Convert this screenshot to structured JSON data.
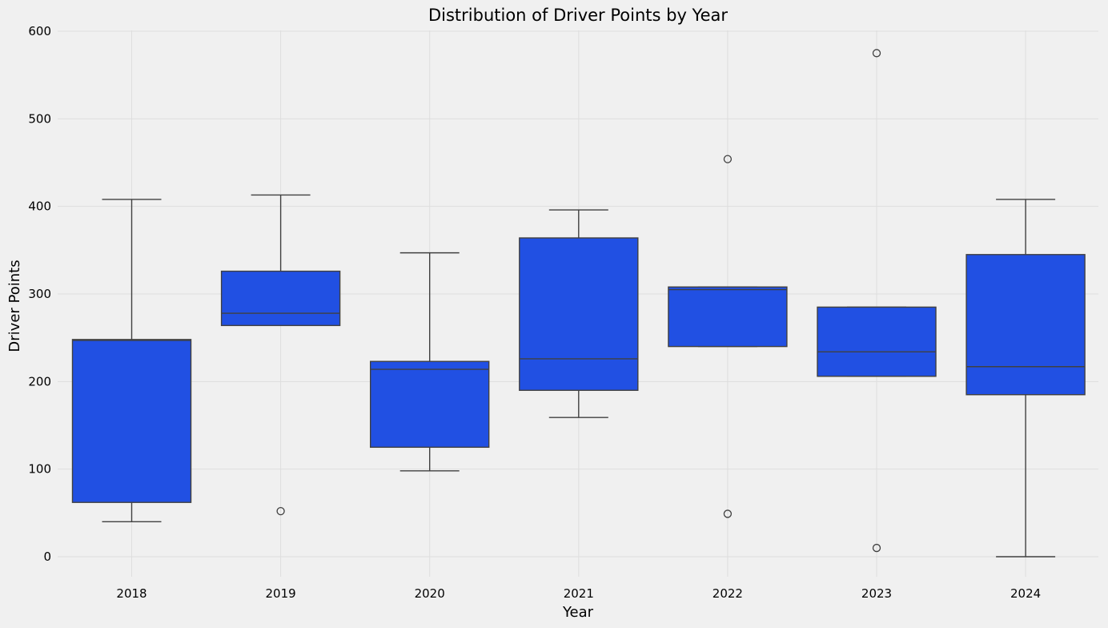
{
  "chart_data": {
    "type": "box",
    "title": "Distribution of Driver Points by Year",
    "xlabel": "Year",
    "ylabel": "Driver Points",
    "ylim": [
      -25,
      600
    ],
    "yticks": [
      0,
      100,
      200,
      300,
      400,
      500,
      600
    ],
    "grid": true,
    "box_color": "#2150e3",
    "line_color": "#404040",
    "categories": [
      "2018",
      "2019",
      "2020",
      "2021",
      "2022",
      "2023",
      "2024"
    ],
    "boxes": [
      {
        "category": "2018",
        "whisker_low": 40,
        "q1": 62,
        "median": 247,
        "q3": 248,
        "whisker_high": 408,
        "outliers": []
      },
      {
        "category": "2019",
        "whisker_low": 264,
        "q1": 264,
        "median": 278,
        "q3": 326,
        "whisker_high": 413,
        "outliers": [
          52
        ]
      },
      {
        "category": "2020",
        "whisker_low": 98,
        "q1": 125,
        "median": 214,
        "q3": 223,
        "whisker_high": 347,
        "outliers": []
      },
      {
        "category": "2021",
        "whisker_low": 159,
        "q1": 190,
        "median": 226,
        "q3": 364,
        "whisker_high": 396,
        "outliers": []
      },
      {
        "category": "2022",
        "whisker_low": 240,
        "q1": 240,
        "median": 305,
        "q3": 308,
        "whisker_high": 308,
        "outliers": [
          454,
          49
        ]
      },
      {
        "category": "2023",
        "whisker_low": 206,
        "q1": 206,
        "median": 234,
        "q3": 285,
        "whisker_high": 285,
        "outliers": [
          575,
          10
        ]
      },
      {
        "category": "2024",
        "whisker_low": 0,
        "q1": 185,
        "median": 217,
        "q3": 345,
        "whisker_high": 408,
        "outliers": []
      }
    ]
  }
}
